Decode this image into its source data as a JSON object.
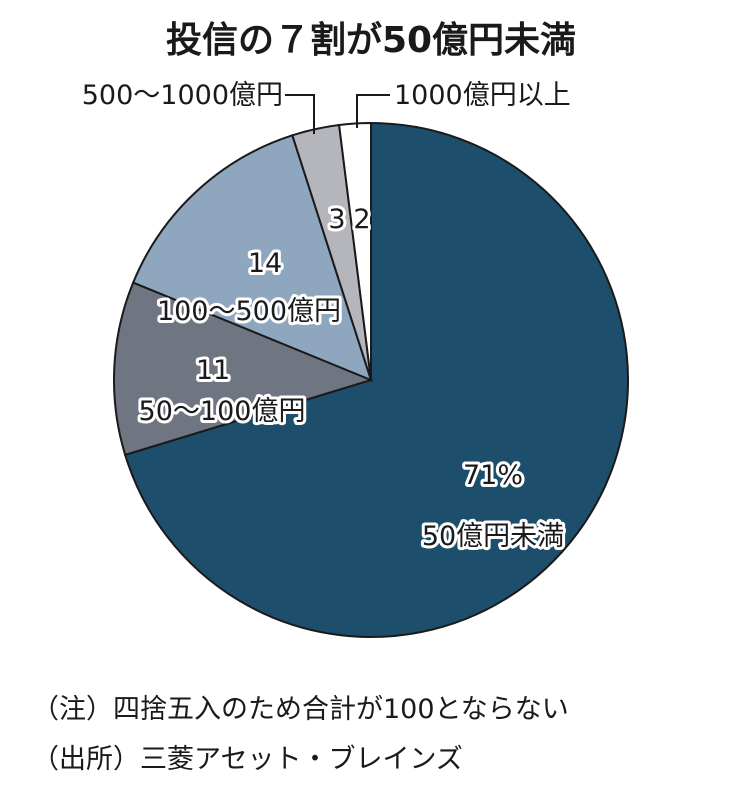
{
  "chart_data": {
    "type": "pie",
    "title": "投信の７割が50億円未満",
    "slices": [
      {
        "category": "50億円未満",
        "value": 71,
        "value_label": "71%",
        "color": "#1d4e6b"
      },
      {
        "category": "50～100億円",
        "value": 11,
        "value_label": "11",
        "color": "#6f7681"
      },
      {
        "category": "100～500億円",
        "value": 14,
        "value_label": "14",
        "color": "#8ea6be"
      },
      {
        "category": "500～1000億円",
        "value": 3,
        "value_label": "3",
        "color": "#b4b6bc"
      },
      {
        "category": "1000億円以上",
        "value": 2,
        "value_label": "2",
        "color": "#ffffff"
      }
    ]
  },
  "footnotes": {
    "note": "（注）四捨五入のため合計が100とならない",
    "source": "（出所）三菱アセット・ブレインズ"
  }
}
